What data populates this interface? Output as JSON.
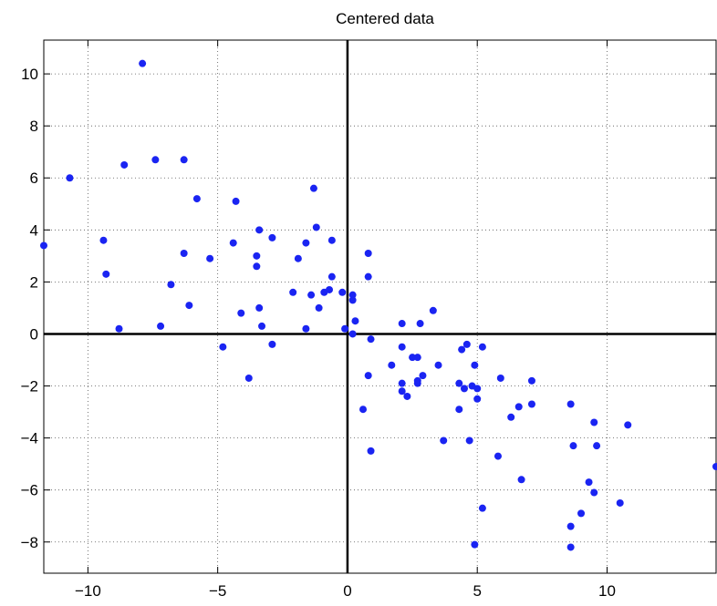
{
  "chart_data": {
    "type": "scatter",
    "title": "Centered data",
    "xlabel": "",
    "ylabel": "",
    "xlim": [
      -11.7,
      14.2
    ],
    "ylim": [
      -9.2,
      11.3
    ],
    "grid": true,
    "xticks": [
      -10,
      -5,
      0,
      5,
      10
    ],
    "yticks": [
      -8,
      -6,
      -4,
      -2,
      0,
      2,
      4,
      6,
      8,
      10
    ],
    "xtick_labels": [
      "−10",
      "−5",
      "0",
      "5",
      "10"
    ],
    "ytick_labels": [
      "−8",
      "−6",
      "−4",
      "−2",
      "0",
      "2",
      "4",
      "6",
      "8",
      "10"
    ],
    "marker_color": "#1a24f2",
    "points": [
      [
        -7.9,
        10.4
      ],
      [
        -10.7,
        6.0
      ],
      [
        -8.6,
        6.5
      ],
      [
        -7.4,
        6.7
      ],
      [
        -6.3,
        6.7
      ],
      [
        -5.8,
        5.2
      ],
      [
        -4.3,
        5.1
      ],
      [
        -1.3,
        5.6
      ],
      [
        -11.7,
        3.4
      ],
      [
        -9.4,
        3.6
      ],
      [
        -9.3,
        2.3
      ],
      [
        -6.3,
        3.1
      ],
      [
        -5.3,
        2.9
      ],
      [
        -4.4,
        3.5
      ],
      [
        -3.5,
        3.0
      ],
      [
        -3.5,
        2.6
      ],
      [
        -3.4,
        4.0
      ],
      [
        -2.9,
        3.7
      ],
      [
        -1.6,
        3.5
      ],
      [
        -1.2,
        4.1
      ],
      [
        -0.6,
        3.6
      ],
      [
        -1.9,
        2.9
      ],
      [
        -0.6,
        2.2
      ],
      [
        0.8,
        3.1
      ],
      [
        0.8,
        2.2
      ],
      [
        -6.8,
        1.9
      ],
      [
        -6.1,
        1.1
      ],
      [
        -8.8,
        0.2
      ],
      [
        -7.2,
        0.3
      ],
      [
        -4.1,
        0.8
      ],
      [
        -3.4,
        1.0
      ],
      [
        -3.3,
        0.3
      ],
      [
        -2.1,
        1.6
      ],
      [
        -1.4,
        1.5
      ],
      [
        -1.1,
        1.0
      ],
      [
        -0.9,
        1.6
      ],
      [
        -0.7,
        1.7
      ],
      [
        -0.2,
        1.6
      ],
      [
        0.2,
        1.3
      ],
      [
        0.2,
        1.5
      ],
      [
        -1.6,
        0.2
      ],
      [
        -0.1,
        0.2
      ],
      [
        0.3,
        0.5
      ],
      [
        0.2,
        0.0
      ],
      [
        -4.8,
        -0.5
      ],
      [
        -2.9,
        -0.4
      ],
      [
        -3.8,
        -1.7
      ],
      [
        0.9,
        -0.2
      ],
      [
        0.8,
        -1.6
      ],
      [
        0.6,
        -2.9
      ],
      [
        0.9,
        -4.5
      ],
      [
        2.1,
        0.4
      ],
      [
        2.8,
        0.4
      ],
      [
        3.3,
        0.9
      ],
      [
        2.1,
        -0.5
      ],
      [
        1.7,
        -1.2
      ],
      [
        2.5,
        -0.9
      ],
      [
        2.7,
        -0.9
      ],
      [
        2.9,
        -1.6
      ],
      [
        3.5,
        -1.2
      ],
      [
        2.1,
        -1.9
      ],
      [
        2.1,
        -2.2
      ],
      [
        2.3,
        -2.4
      ],
      [
        2.7,
        -1.8
      ],
      [
        2.7,
        -1.9
      ],
      [
        3.7,
        -4.1
      ],
      [
        4.4,
        -0.6
      ],
      [
        4.6,
        -0.4
      ],
      [
        5.2,
        -0.5
      ],
      [
        4.9,
        -1.2
      ],
      [
        4.3,
        -1.9
      ],
      [
        4.5,
        -2.1
      ],
      [
        4.8,
        -2.0
      ],
      [
        5.0,
        -2.1
      ],
      [
        5.0,
        -2.5
      ],
      [
        4.3,
        -2.9
      ],
      [
        4.7,
        -4.1
      ],
      [
        5.2,
        -6.7
      ],
      [
        4.9,
        -8.1
      ],
      [
        5.9,
        -1.7
      ],
      [
        7.1,
        -1.8
      ],
      [
        6.6,
        -2.8
      ],
      [
        6.3,
        -3.2
      ],
      [
        7.1,
        -2.7
      ],
      [
        5.8,
        -4.7
      ],
      [
        6.7,
        -5.6
      ],
      [
        8.6,
        -2.7
      ],
      [
        8.7,
        -4.3
      ],
      [
        9.5,
        -3.4
      ],
      [
        9.6,
        -4.3
      ],
      [
        10.8,
        -3.5
      ],
      [
        9.3,
        -5.7
      ],
      [
        9.5,
        -6.1
      ],
      [
        9.0,
        -6.9
      ],
      [
        8.6,
        -7.4
      ],
      [
        8.6,
        -8.2
      ],
      [
        10.5,
        -6.5
      ],
      [
        14.2,
        -5.1
      ]
    ]
  }
}
